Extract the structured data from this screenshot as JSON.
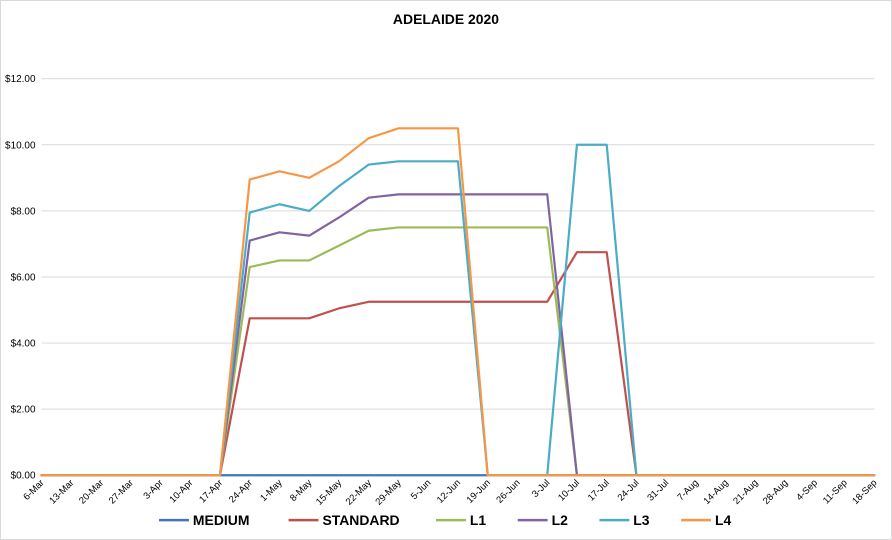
{
  "chart_data": {
    "type": "line",
    "title": "ADELAIDE 2020",
    "xlabel": "",
    "ylabel": "",
    "ylim": [
      0,
      12
    ],
    "yticks": [
      "$0.00",
      "$2.00",
      "$4.00",
      "$6.00",
      "$8.00",
      "$10.00",
      "$12.00"
    ],
    "grid": true,
    "legend_position": "bottom",
    "categories": [
      "6-Mar",
      "13-Mar",
      "20-Mar",
      "27-Mar",
      "3-Apr",
      "10-Apr",
      "17-Apr",
      "24-Apr",
      "1-May",
      "8-May",
      "15-May",
      "22-May",
      "29-May",
      "5-Jun",
      "12-Jun",
      "19-Jun",
      "26-Jun",
      "3-Jul",
      "10-Jul",
      "17-Jul",
      "24-Jul",
      "31-Jul",
      "7-Aug",
      "14-Aug",
      "21-Aug",
      "28-Aug",
      "4-Sep",
      "11-Sep",
      "18-Sep"
    ],
    "series": [
      {
        "name": "MEDIUM",
        "color": "#4472c4",
        "values": [
          0,
          0,
          0,
          0,
          0,
          0,
          0,
          0,
          0,
          0,
          0,
          0,
          0,
          0,
          0,
          0,
          0,
          0,
          0,
          0,
          0,
          0,
          0,
          0,
          0,
          0,
          0,
          0,
          0
        ]
      },
      {
        "name": "STANDARD",
        "color": "#c0504d",
        "values": [
          0,
          0,
          0,
          0,
          0,
          0,
          0,
          4.75,
          4.75,
          4.75,
          5.05,
          5.25,
          5.25,
          5.25,
          5.25,
          5.25,
          5.25,
          5.25,
          6.75,
          6.75,
          0,
          0,
          0,
          0,
          0,
          0,
          0,
          0,
          0
        ]
      },
      {
        "name": "L1",
        "color": "#9bbb59",
        "values": [
          0,
          0,
          0,
          0,
          0,
          0,
          0,
          6.3,
          6.5,
          6.5,
          6.95,
          7.4,
          7.5,
          7.5,
          7.5,
          7.5,
          7.5,
          7.5,
          0,
          0,
          0,
          0,
          0,
          0,
          0,
          0,
          0,
          0,
          0
        ]
      },
      {
        "name": "L2",
        "color": "#8064a2",
        "values": [
          0,
          0,
          0,
          0,
          0,
          0,
          0,
          7.1,
          7.35,
          7.25,
          7.8,
          8.4,
          8.5,
          8.5,
          8.5,
          8.5,
          8.5,
          8.5,
          0,
          0,
          0,
          0,
          0,
          0,
          0,
          0,
          0,
          0,
          0
        ]
      },
      {
        "name": "L3",
        "color": "#4bacc6",
        "values": [
          0,
          0,
          0,
          0,
          0,
          0,
          0,
          7.95,
          8.2,
          8.0,
          8.75,
          9.4,
          9.5,
          9.5,
          9.5,
          0,
          0,
          0,
          10,
          10,
          0,
          0,
          0,
          0,
          0,
          0,
          0,
          0,
          0
        ]
      },
      {
        "name": "L4",
        "color": "#f79646",
        "values": [
          0,
          0,
          0,
          0,
          0,
          0,
          0,
          8.95,
          9.2,
          9.0,
          9.5,
          10.2,
          10.5,
          10.5,
          10.5,
          0,
          0,
          0,
          0,
          0,
          0,
          0,
          0,
          0,
          0,
          0,
          0,
          0,
          0
        ]
      }
    ]
  }
}
